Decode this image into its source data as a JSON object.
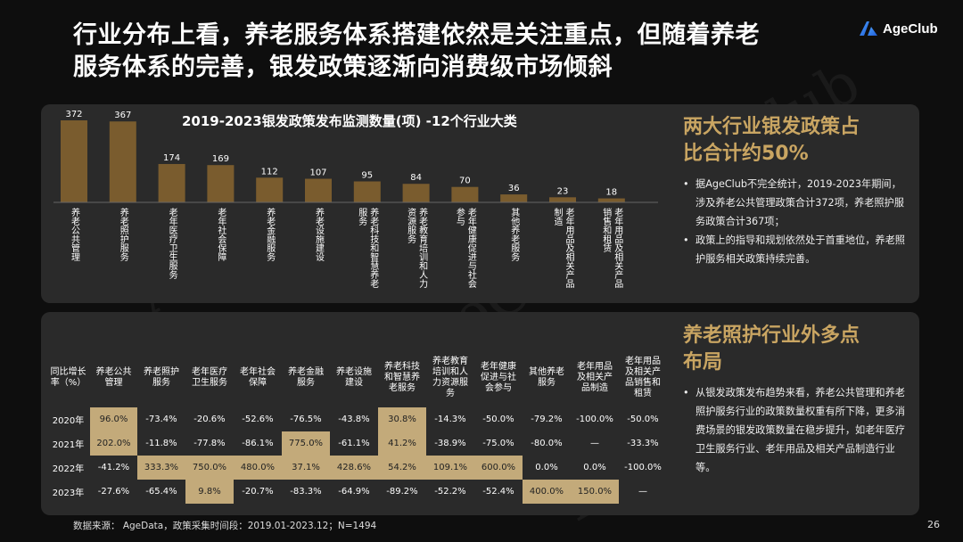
{
  "page": {
    "title_line1": "行业分布上看，养老服务体系搭建依然是关注重点，但随着养老",
    "title_line2": "服务体系的完善，银发政策逐渐向消费级市场倾斜",
    "logo_text": "AgeClub",
    "page_number": "26",
    "source": "数据来源：  AgeData，政策采集时间段：2019.01-2023.12；N=1494",
    "watermark": "AgeClub",
    "colors": {
      "bar": "#7a5c2e",
      "highlight": "#c3aa7a",
      "accent": "#c9a562",
      "panel": "#2a2a2a"
    }
  },
  "chart_data": {
    "type": "bar",
    "title": "2019-2023银发政策发布监测数量(项)  -12个行业大类",
    "categories": [
      {
        "line1": "养老公共管理",
        "line2": ""
      },
      {
        "line1": "养老照护服务",
        "line2": ""
      },
      {
        "line1": "老年医疗卫生服务",
        "line2": ""
      },
      {
        "line1": "老年社会保障",
        "line2": ""
      },
      {
        "line1": "养老金融服务",
        "line2": ""
      },
      {
        "line1": "养老设施建设",
        "line2": ""
      },
      {
        "line1": "养老科技和智慧养老",
        "line2": "服务"
      },
      {
        "line1": "养老教育培训和人力",
        "line2": "资源服务"
      },
      {
        "line1": "老年健康促进与社会",
        "line2": "参与"
      },
      {
        "line1": "其他养老服务",
        "line2": ""
      },
      {
        "line1": "老年用品及相关产品",
        "line2": "制造"
      },
      {
        "line1": "老年用品及相关产品",
        "line2": "销售和租赁"
      }
    ],
    "values": [
      372,
      367,
      174,
      169,
      112,
      107,
      95,
      84,
      70,
      36,
      23,
      18
    ],
    "ylim": [
      0,
      372
    ]
  },
  "side1": {
    "title_line1": "两大行业银发政策占",
    "title_line2": "比合计约50%",
    "bullets": [
      "据AgeClub不完全统计，2019-2023年期间，涉及养老公共管理政策合计372项，养老照护服务政策合计367项；",
      "政策上的指导和规划依然处于首重地位，养老照护服务相关政策持续完善。"
    ]
  },
  "side2": {
    "title_line1": "养老照护行业外多点",
    "title_line2": "布局",
    "bullets": [
      "从银发政策发布趋势来看，养老公共管理和养老照护服务行业的政策数量权重有所下降，更多消费场景的银发政策数量在稳步提升，如老年医疗卫生服务行业、老年用品及相关产品制造行业等。"
    ]
  },
  "table": {
    "header_first": [
      "同比增长",
      "率（%）"
    ],
    "headers": [
      [
        "养老公共",
        "管理"
      ],
      [
        "养老照护",
        "服务"
      ],
      [
        "老年医疗",
        "卫生服务"
      ],
      [
        "老年社会",
        "保障"
      ],
      [
        "养老金融",
        "服务"
      ],
      [
        "养老设施",
        "建设"
      ],
      [
        "养老科技",
        "和智慧养",
        "老服务"
      ],
      [
        "养老教育",
        "培训和人",
        "力资源服",
        "务"
      ],
      [
        "老年健康",
        "促进与社",
        "会参与"
      ],
      [
        "其他养老",
        "服务"
      ],
      [
        "老年用品",
        "及相关产",
        "品制造"
      ],
      [
        "老年用品",
        "及相关产",
        "品销售和",
        "租赁"
      ]
    ],
    "rows": [
      {
        "year": "2020年",
        "cells": [
          "96.0%",
          "-73.4%",
          "-20.6%",
          "-52.6%",
          "-76.5%",
          "-43.8%",
          "30.8%",
          "-14.3%",
          "-50.0%",
          "-79.2%",
          "-100.0%",
          "-50.0%"
        ],
        "hl": [
          true,
          false,
          false,
          false,
          false,
          false,
          true,
          false,
          false,
          false,
          false,
          false
        ]
      },
      {
        "year": "2021年",
        "cells": [
          "202.0%",
          "-11.8%",
          "-77.8%",
          "-86.1%",
          "775.0%",
          "-61.1%",
          "41.2%",
          "-38.9%",
          "-75.0%",
          "-80.0%",
          "—",
          "-33.3%"
        ],
        "hl": [
          true,
          false,
          false,
          false,
          true,
          false,
          true,
          false,
          false,
          false,
          false,
          false
        ]
      },
      {
        "year": "2022年",
        "cells": [
          "-41.2%",
          "333.3%",
          "750.0%",
          "480.0%",
          "37.1%",
          "428.6%",
          "54.2%",
          "109.1%",
          "600.0%",
          "0.0%",
          "0.0%",
          "-100.0%"
        ],
        "hl": [
          false,
          true,
          true,
          true,
          true,
          true,
          true,
          true,
          true,
          false,
          false,
          false
        ]
      },
      {
        "year": "2023年",
        "cells": [
          "-27.6%",
          "-65.4%",
          "9.8%",
          "-20.7%",
          "-83.3%",
          "-64.9%",
          "-89.2%",
          "-52.2%",
          "-52.4%",
          "400.0%",
          "150.0%",
          "—"
        ],
        "hl": [
          false,
          false,
          true,
          false,
          false,
          false,
          false,
          false,
          false,
          true,
          true,
          false
        ]
      }
    ]
  }
}
